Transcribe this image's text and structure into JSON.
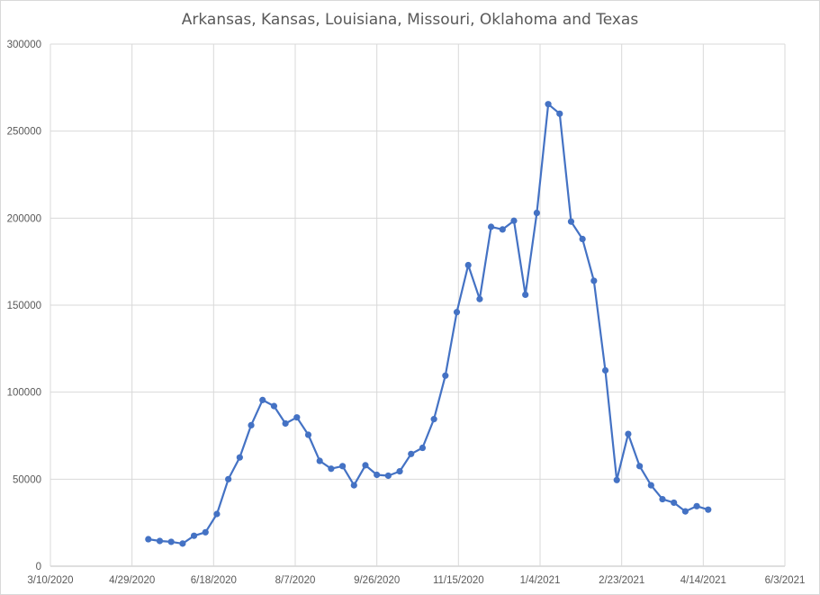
{
  "chart_data": {
    "type": "line",
    "title": "Arkansas, Kansas, Louisiana, Missouri, Oklahoma and Texas",
    "xlabel": "",
    "ylabel": "",
    "ylim": [
      0,
      300000
    ],
    "yticks": [
      0,
      50000,
      100000,
      150000,
      200000,
      250000,
      300000
    ],
    "ytick_labels": [
      "0",
      "50000",
      "100000",
      "150000",
      "200000",
      "250000",
      "300000"
    ],
    "xlim": [
      "2020-03-10",
      "2021-06-03"
    ],
    "xticks": [
      "2020-03-10",
      "2020-04-29",
      "2020-06-18",
      "2020-08-07",
      "2020-09-26",
      "2020-11-15",
      "2021-01-04",
      "2021-02-23",
      "2021-04-14",
      "2021-06-03"
    ],
    "xtick_labels": [
      "3/10/2020",
      "4/29/2020",
      "6/18/2020",
      "8/7/2020",
      "9/26/2020",
      "11/15/2020",
      "1/4/2021",
      "2/23/2021",
      "4/14/2021",
      "6/3/2021"
    ],
    "grid": "vertical and horizontal",
    "color": "#4472c4",
    "series": [
      {
        "x": [
          "2020-05-09",
          "2020-05-16",
          "2020-05-23",
          "2020-05-30",
          "2020-06-06",
          "2020-06-13",
          "2020-06-20",
          "2020-06-27",
          "2020-07-04",
          "2020-07-11",
          "2020-07-18",
          "2020-07-25",
          "2020-08-01",
          "2020-08-08",
          "2020-08-15",
          "2020-08-22",
          "2020-08-29",
          "2020-09-05",
          "2020-09-12",
          "2020-09-19",
          "2020-09-26",
          "2020-10-03",
          "2020-10-10",
          "2020-10-17",
          "2020-10-24",
          "2020-10-31",
          "2020-11-07",
          "2020-11-14",
          "2020-11-21",
          "2020-11-28",
          "2020-12-05",
          "2020-12-12",
          "2020-12-19",
          "2020-12-26",
          "2021-01-02",
          "2021-01-09",
          "2021-01-16",
          "2021-01-23",
          "2021-01-30",
          "2021-02-06",
          "2021-02-13",
          "2021-02-20",
          "2021-02-27",
          "2021-03-06",
          "2021-03-13",
          "2021-03-20",
          "2021-03-27",
          "2021-04-03",
          "2021-04-10",
          "2021-04-17"
        ],
        "values": [
          15500,
          14500,
          14000,
          13000,
          17500,
          19500,
          30000,
          50000,
          62500,
          81000,
          95500,
          92000,
          82000,
          85500,
          75500,
          60500,
          56000,
          57500,
          46500,
          58000,
          52500,
          52000,
          54500,
          64500,
          68000,
          84500,
          109500,
          146000,
          173000,
          153500,
          195000,
          193500,
          198500,
          156000,
          203000,
          265500,
          260000,
          198000,
          188000,
          164000,
          112500,
          49500,
          76000,
          57500,
          46500,
          38500,
          36500,
          31500,
          34500,
          32500
        ]
      }
    ]
  }
}
